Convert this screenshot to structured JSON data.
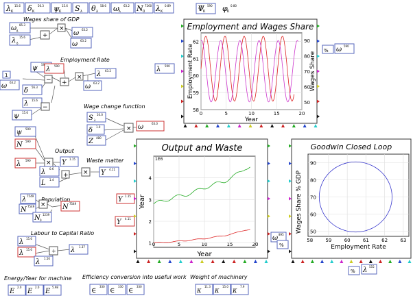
{
  "section_labels": {
    "wages_share": "Wages share of GDP",
    "employment": "Employment Rate",
    "wage_change": "Wage change function",
    "output": "Output",
    "waste": "Waste matter",
    "population": "Population",
    "labour_capital": "Labour to Capital Ratio",
    "energy": "Energy/Year for machine",
    "efficiency": "Efficiency conversion into useful work",
    "weight": "Weight of machinery"
  },
  "top_vars": [
    {
      "sym": "λ",
      "sub": "K",
      "val": "15.6"
    },
    {
      "sym": "δ",
      "sub": "K",
      "val": "56.3"
    },
    {
      "sym": "ψ",
      "sub": "K",
      "val": "15.6"
    },
    {
      "sym": "S",
      "sub": "λ",
      "val": ""
    },
    {
      "sym": "θ",
      "sub": "λ",
      "val": "58.6"
    },
    {
      "sym": "ω",
      "sub": "λ",
      "val": "63.2"
    },
    {
      "sym": "N",
      "sub": "0",
      "val": "7260"
    },
    {
      "sym": "λ",
      "sub": "K",
      "val": "0.89"
    }
  ],
  "extra_vars": [
    {
      "sym": "Ψ",
      "sub": "K",
      "val": "590"
    },
    {
      "sym": "φ",
      "sub": "K",
      "val": "0.80"
    }
  ],
  "symbols": {
    "omega": "ω",
    "lambda": "λ",
    "delta": "δ",
    "psi": "ψ",
    "upsilon": "Y",
    "N": "N",
    "Z": "Z",
    "Lm": "L",
    "S": "S",
    "plus": "+",
    "minus": "−",
    "times": "×",
    "div": "÷",
    "one": "1",
    "pct": "%",
    "E": "E",
    "eps": "∈",
    "kE": "κ"
  },
  "node_values": {
    "omega_delta": "85.3",
    "lambda_delta": "15.6",
    "omega_out": "63.2",
    "omega_g": "63.2",
    "psi_k": "590",
    "lambda_k": "590",
    "lambda_out": "63.2",
    "omega_t": "63.2",
    "delta_k": "56.3",
    "lambda_k2": "15.6",
    "psi_k2": "15.6",
    "s_lambda": "10.0",
    "phi": "1.0",
    "z": "480",
    "omega_wage": "63.0",
    "psi_out": "590",
    "n_out": "590",
    "lambda_out2": "590",
    "y_out": "1.15",
    "lambda_w": "0.6",
    "psi_w": "0.6",
    "l_w": "1.4",
    "y_w": "4.11",
    "n_pop": "7549",
    "n_pop2": "7549",
    "n_zero": "1239",
    "n_pop3": "7549",
    "lambda_kap": "15.6",
    "lambda_kap2": "15.6",
    "lambda_kap_o": "1.50",
    "lambda_kap_out": "1.37",
    "e_e": "2.0",
    "e_m": "2.0",
    "e_f": "5.98",
    "eff_e": "330",
    "eff_m": "330",
    "eff_f": "330",
    "k_e": "11.3",
    "k_m": "15.0",
    "k_f": "7.9",
    "omega_side": "590",
    "omega_side2": "590",
    "y_side": "1.15",
    "y_side2": "4.11",
    "omega_gw": "895",
    "pct_side": "555"
  },
  "charts": {
    "employment": {
      "title": "Employment and Wages Share",
      "xlabel": "Year",
      "ylabel_left": "Employment Rate",
      "ylabel_right": "Wages Share",
      "x_ticks": [
        "0",
        "5",
        "10",
        "15",
        "20"
      ],
      "y_left_ticks": [
        "58",
        "59",
        "60",
        "61",
        "62"
      ],
      "y_right_ticks": [
        "50",
        "60",
        "70",
        "80",
        "90"
      ]
    },
    "output": {
      "title": "Output and Waste",
      "xlabel": "Year",
      "ylabel": "Year",
      "multiplier": "1E6",
      "x_ticks": [
        "0",
        "5",
        "10",
        "15",
        "20"
      ],
      "y_ticks": [
        "1",
        "2",
        "3",
        "4"
      ]
    },
    "goodwin": {
      "title": "Goodwin Closed Loop",
      "xlabel": "Employment Rate",
      "ylabel": "Wages Share % GDP",
      "x_ticks": [
        "58",
        "59",
        "60",
        "61",
        "62",
        "63"
      ],
      "y_ticks": [
        "50",
        "60",
        "70",
        "80",
        "90"
      ]
    }
  },
  "chart_data": [
    {
      "type": "line",
      "title": "Employment and Wages Share",
      "xlabel": "Year",
      "ylabel": "Employment Rate",
      "xlim": [
        0,
        20
      ],
      "ylim": [
        58,
        62.5
      ],
      "y2label": "Wages Share",
      "y2lim": [
        45,
        95
      ],
      "series": [
        {
          "name": "",
          "axis": "left",
          "color": "#dd2222",
          "period": 3.8,
          "phase": 0,
          "center": 60.4,
          "amplitude": 1.9,
          "x_end": 18.5
        },
        {
          "name": "",
          "axis": "right",
          "color": "#cc33cc",
          "period": 3.8,
          "phase": 1.4,
          "center": 70,
          "amplitude": 20,
          "x_end": 19.3
        }
      ]
    },
    {
      "type": "line",
      "title": "Output and Waste",
      "xlabel": "Year",
      "ylabel": "Year",
      "xlim": [
        0,
        20
      ],
      "ylim": [
        0.8,
        5
      ],
      "series": [
        {
          "name": "",
          "color": "#22aa22",
          "x": [
            0,
            2,
            4,
            6,
            8,
            10,
            12,
            14,
            16,
            18,
            19
          ],
          "y": [
            2.8,
            2.95,
            3.1,
            3.2,
            3.35,
            3.55,
            3.7,
            3.85,
            4.1,
            4.45,
            4.5
          ]
        },
        {
          "name": "",
          "color": "#dd2222",
          "x": [
            0,
            2,
            4,
            6,
            8,
            10,
            12,
            14,
            16,
            18,
            19
          ],
          "y": [
            1.0,
            1.02,
            1.06,
            1.1,
            1.15,
            1.2,
            1.27,
            1.34,
            1.45,
            1.6,
            1.62
          ]
        }
      ]
    },
    {
      "type": "line",
      "title": "Goodwin Closed Loop",
      "xlabel": "Employment Rate",
      "ylabel": "Wages Share % GDP",
      "xlim": [
        57.9,
        63.3
      ],
      "ylim": [
        47,
        95
      ],
      "series": [
        {
          "name": "",
          "color": "#3333cc",
          "shape": "ellipse",
          "cx": 60.45,
          "cy": 70,
          "rx": 1.95,
          "ry": 20.5
        }
      ]
    }
  ]
}
